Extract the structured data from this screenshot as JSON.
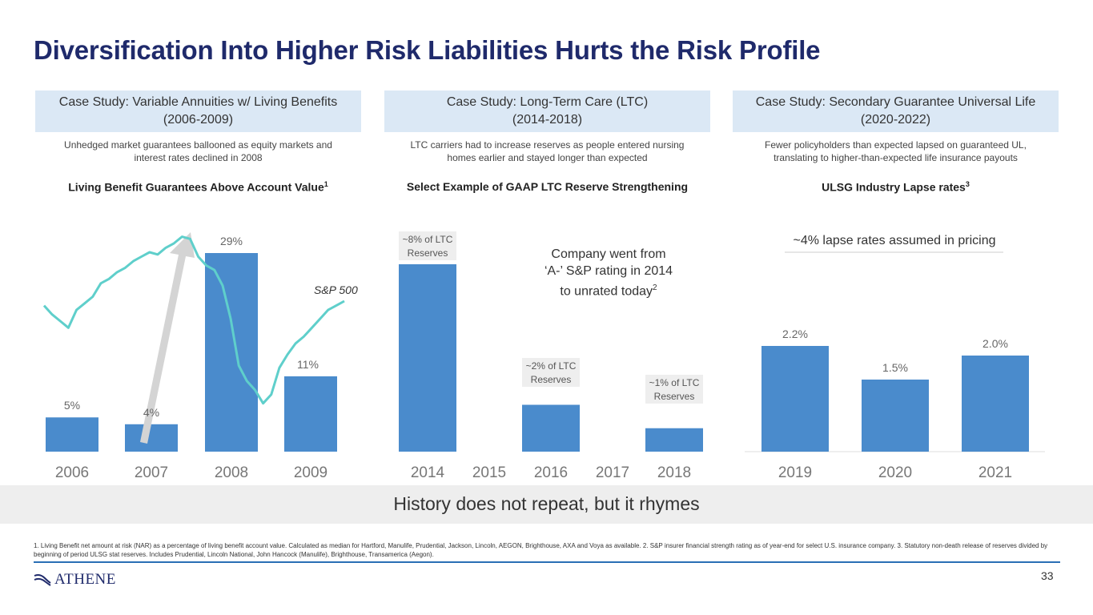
{
  "title": "Diversification Into Higher Risk Liabilities Hurts the Risk Profile",
  "panels": [
    {
      "case_line1": "Case Study: Variable Annuities w/ Living Benefits",
      "case_line2": "(2006-2009)",
      "desc_line1": "Unhedged market guarantees ballooned as equity markets and",
      "desc_line2": "interest rates declined in 2008",
      "chart_title": "Living Benefit Guarantees Above Account Value",
      "chart_title_sup": "1"
    },
    {
      "case_line1": "Case Study: Long-Term Care (LTC)",
      "case_line2": "(2014-2018)",
      "desc_line1": "LTC carriers had to increase reserves as people entered nursing",
      "desc_line2": "homes earlier and stayed longer than expected",
      "chart_title": "Select Example of GAAP LTC Reserve Strengthening",
      "chart_title_sup": ""
    },
    {
      "case_line1": "Case Study: Secondary Guarantee Universal Life",
      "case_line2": "(2020-2022)",
      "desc_line1": "Fewer policyholders than expected lapsed on guaranteed UL,",
      "desc_line2": "translating to higher-than-expected life insurance payouts",
      "chart_title": "ULSG Industry Lapse rates",
      "chart_title_sup": "3"
    }
  ],
  "chart_data": [
    {
      "type": "bar",
      "title": "Living Benefit Guarantees Above Account Value",
      "categories": [
        "2006",
        "2007",
        "2008",
        "2009"
      ],
      "values": [
        5,
        4,
        29,
        11
      ],
      "labels": [
        "5%",
        "4%",
        "29%",
        "11%"
      ],
      "unit": "%",
      "ylim": [
        0,
        30
      ],
      "overlay": {
        "type": "line",
        "name": "S&P 500",
        "label": "S&P 500",
        "series_index": [
          62,
          58,
          55,
          52,
          60,
          63,
          66,
          72,
          74,
          77,
          79,
          82,
          84,
          86,
          85,
          88,
          90,
          93,
          92,
          84,
          80,
          78,
          71,
          56,
          35,
          28,
          24,
          18,
          22,
          34,
          40,
          45,
          48,
          52,
          56,
          60,
          62,
          64
        ]
      }
    },
    {
      "type": "bar",
      "title": "Select Example of GAAP LTC Reserve Strengthening",
      "categories": [
        "2014",
        "2015",
        "2016",
        "2017",
        "2018"
      ],
      "values": [
        8,
        0,
        2,
        0,
        1
      ],
      "labels": [
        "~8% of LTC Reserves",
        "",
        "~2% of LTC Reserves",
        "",
        "~1% of LTC Reserves"
      ],
      "unit": "% of LTC Reserves",
      "annotation_line1": "Company went from",
      "annotation_line2": "‘A-’ S&P rating in 2014",
      "annotation_line3": "to unrated today",
      "annotation_sup": "2"
    },
    {
      "type": "bar",
      "title": "ULSG Industry Lapse rates",
      "categories": [
        "2019",
        "2020",
        "2021"
      ],
      "values": [
        2.2,
        1.5,
        2.0
      ],
      "labels": [
        "2.2%",
        "1.5%",
        "2.0%"
      ],
      "unit": "%",
      "reference_label": "~4% lapse rates assumed in pricing"
    }
  ],
  "history_text": "History does not repeat, but it rhymes",
  "footnote": "1. Living Benefit net amount at risk (NAR) as a percentage of living benefit account value. Calculated as median for Hartford, Manulife, Prudential, Jackson, Lincoln, AEGON, Brighthouse, AXA and Voya as available. 2. S&P insurer financial strength rating as of year-end for select U.S. insurance company. 3. Statutory non-death release of reserves divided by beginning of period ULSG stat reserves. Includes Prudential, Lincoln National, John Hancock (Manulife), Brighthouse, Transamerica (Aegon).",
  "logo_text": "ATHENE",
  "page_number": "33",
  "colors": {
    "bar": "#4a8bcc",
    "line": "#5fcfcb",
    "title": "#1f2a6b",
    "case_bg": "#dbe8f5",
    "arrow": "#d4d4d4"
  }
}
